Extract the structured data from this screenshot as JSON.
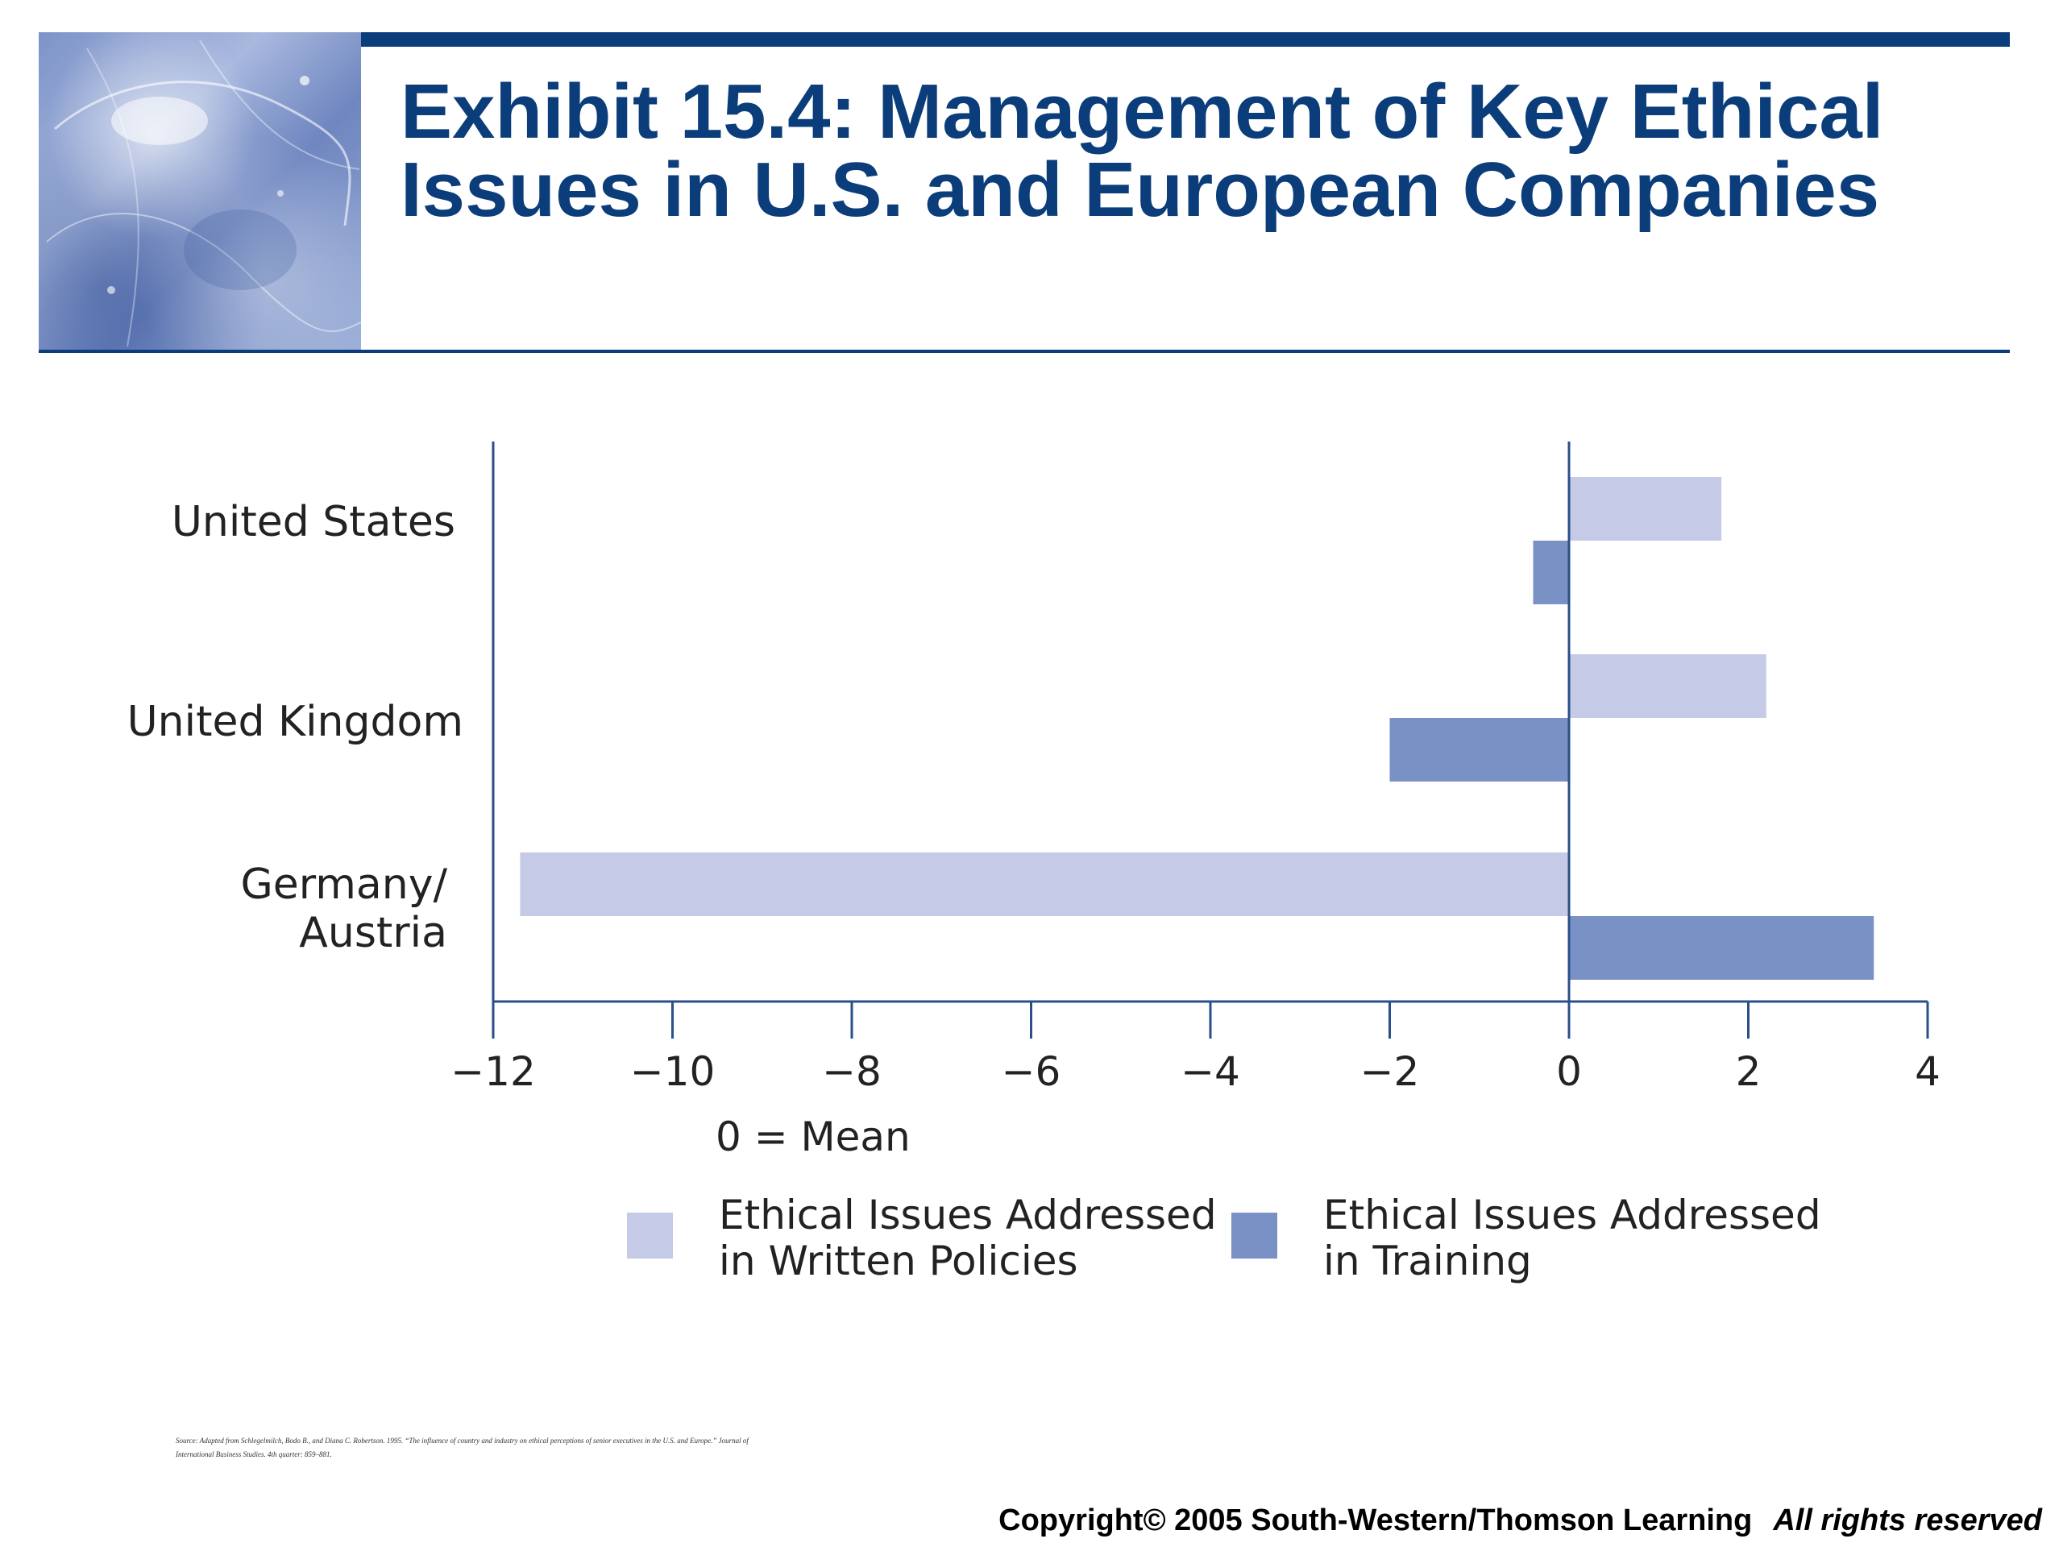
{
  "header": {
    "title": "Exhibit 15.4: Management of Key Ethical Issues in U.S. and European Companies"
  },
  "chart_data": {
    "type": "bar",
    "orientation": "horizontal",
    "categories": [
      "United States",
      "United Kingdom",
      "Germany/ Austria"
    ],
    "category_lines": [
      [
        "United States"
      ],
      [
        "United Kingdom"
      ],
      [
        "Germany/",
        "Austria"
      ]
    ],
    "series": [
      {
        "name": "Ethical Issues Addressed in Written Policies",
        "name_lines": [
          "Ethical Issues Addressed",
          "in Written Policies"
        ],
        "color": "#c5cbe6",
        "values": [
          1.7,
          2.2,
          -11.7
        ]
      },
      {
        "name": "Ethical Issues Addressed in Training",
        "name_lines": [
          "Ethical Issues Addressed",
          "in Training"
        ],
        "color": "#7a91c5",
        "values": [
          -0.4,
          -2.0,
          3.4
        ]
      }
    ],
    "xlim": [
      -12,
      4
    ],
    "xticks": [
      -12,
      -10,
      -8,
      -6,
      -4,
      -2,
      0,
      2,
      4
    ],
    "xtick_labels": [
      "−12",
      "−10",
      "−8",
      "−6",
      "−4",
      "−2",
      "0",
      "2",
      "4"
    ],
    "annotation": "0 = Mean",
    "legend_position": "bottom",
    "axis_color": "#2a4f8a"
  },
  "footer": {
    "source": "Source: Adapted from Schlegelmilch, Bodo B., and Diana C. Robertson. 1995. “The influence of country and industry on ethical perceptions of senior executives in the U.S. and Europe.” Journal of International Business Studies. 4th quarter: 859–881.",
    "copyright": "Copyright© 2005 South-Western/Thomson Learning",
    "rights": "All rights reserved"
  }
}
